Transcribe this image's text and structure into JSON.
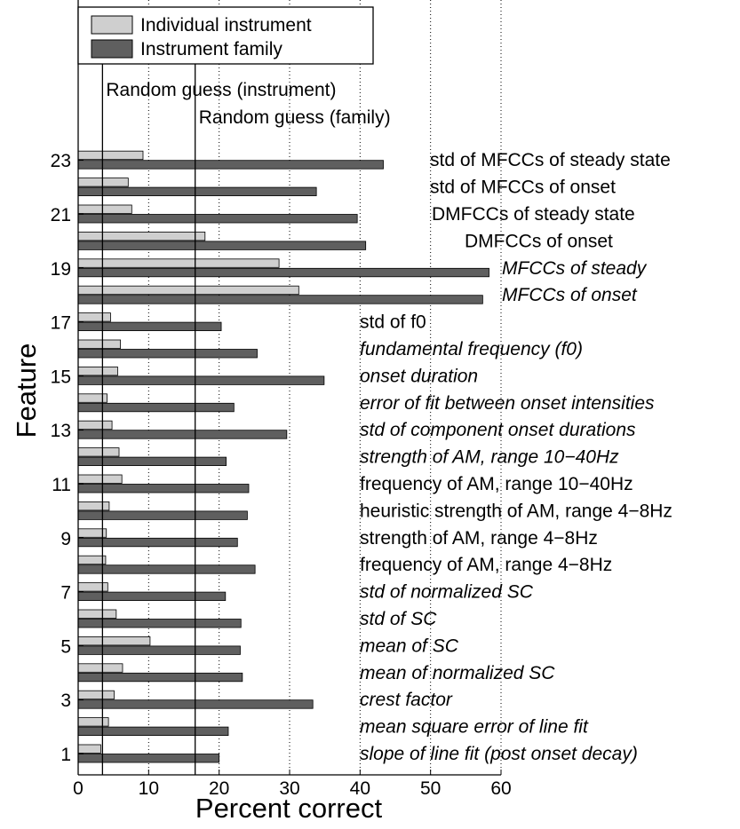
{
  "chart_data": {
    "type": "bar",
    "orientation": "horizontal",
    "xlabel": "Percent correct",
    "ylabel": "Feature",
    "xlim": [
      0,
      60
    ],
    "xticks": [
      "0",
      "10",
      "20",
      "30",
      "40",
      "50",
      "60"
    ],
    "yticks": [
      "1",
      "3",
      "5",
      "7",
      "9",
      "11",
      "13",
      "15",
      "17",
      "19",
      "21",
      "23"
    ],
    "grid": "vertical dotted",
    "legend_position": "top-left",
    "features": [
      1,
      2,
      3,
      4,
      5,
      6,
      7,
      8,
      9,
      10,
      11,
      12,
      13,
      14,
      15,
      16,
      17,
      18,
      19,
      20,
      21,
      22,
      23
    ],
    "feature_labels": [
      "slope of line fit (post onset decay)",
      "mean square error of line fit",
      "crest factor",
      "mean of normalized SC",
      "mean of SC",
      "std of SC",
      "std of normalized SC",
      "frequency of AM, range 4−8Hz",
      "strength of AM, range 4−8Hz",
      "heuristic strength of AM, range 4−8Hz",
      "frequency of AM, range 10−40Hz",
      "strength of AM, range 10−40Hz",
      "std of component onset durations",
      "error of fit between onset intensities",
      "onset duration",
      "fundamental frequency (f0)",
      "std of f0",
      "MFCCs of onset",
      "MFCCs of steady",
      "DMFCCs of onset",
      "DMFCCs of steady state",
      "std of MFCCs of onset",
      "std of MFCCs of steady state"
    ],
    "feature_label_italic": [
      true,
      true,
      true,
      true,
      true,
      true,
      true,
      false,
      false,
      false,
      false,
      true,
      true,
      true,
      true,
      true,
      false,
      true,
      true,
      false,
      false,
      false,
      false
    ],
    "series": [
      {
        "name": "Individual instrument",
        "color": "#cfcfcf",
        "values": [
          3.2,
          4.3,
          5.1,
          6.3,
          10.2,
          5.4,
          4.2,
          3.9,
          4.0,
          4.4,
          6.2,
          5.8,
          4.8,
          4.1,
          5.6,
          6.0,
          4.6,
          31.3,
          28.5,
          18.0,
          7.6,
          7.1,
          9.2
        ]
      },
      {
        "name": "Instrument family",
        "color": "#5f5f5f",
        "values": [
          20.0,
          21.3,
          33.3,
          23.3,
          23.0,
          23.1,
          20.9,
          25.1,
          22.6,
          24.0,
          24.2,
          21.0,
          29.6,
          22.1,
          34.9,
          25.4,
          20.3,
          57.4,
          58.3,
          40.8,
          39.6,
          33.8,
          43.3
        ]
      }
    ],
    "reference_lines": [
      {
        "label": "Random guess (instrument)",
        "x": 3.45
      },
      {
        "label": "Random guess (family)",
        "x": 16.6
      }
    ]
  }
}
